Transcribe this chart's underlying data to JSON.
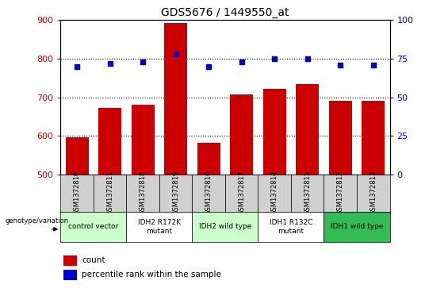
{
  "title": "GDS5676 / 1449550_at",
  "samples": [
    "GSM1372810",
    "GSM1372811",
    "GSM1372818",
    "GSM1372819",
    "GSM1372816",
    "GSM1372817",
    "GSM1372814",
    "GSM1372815",
    "GSM1372812",
    "GSM1372813"
  ],
  "bar_values": [
    595,
    672,
    681,
    893,
    581,
    707,
    722,
    733,
    690,
    690
  ],
  "percentile_values": [
    70,
    72,
    73,
    78,
    70,
    73,
    75,
    75,
    71,
    71
  ],
  "bar_color": "#cc0000",
  "dot_color": "#0000cc",
  "bar_bottom": 500,
  "ylim_left": [
    500,
    900
  ],
  "ylim_right": [
    0,
    100
  ],
  "yticks_left": [
    500,
    600,
    700,
    800,
    900
  ],
  "yticks_right": [
    0,
    25,
    50,
    75,
    100
  ],
  "groups": [
    {
      "label": "control vector",
      "span": [
        0,
        2
      ],
      "color": "#ccffcc"
    },
    {
      "label": "IDH2 R172K\nmutant",
      "span": [
        2,
        4
      ],
      "color": "#ffffff"
    },
    {
      "label": "IDH2 wild type",
      "span": [
        4,
        6
      ],
      "color": "#ccffcc"
    },
    {
      "label": "IDH1 R132C\nmutant",
      "span": [
        6,
        8
      ],
      "color": "#ffffff"
    },
    {
      "label": "IDH1 wild type",
      "span": [
        8,
        10
      ],
      "color": "#33bb55"
    }
  ],
  "legend_label_bar": "count",
  "legend_label_dot": "percentile rank within the sample",
  "xlabel_group": "genotype/variation",
  "sample_bg_color": "#d0d0d0",
  "grid_color": "#555555"
}
